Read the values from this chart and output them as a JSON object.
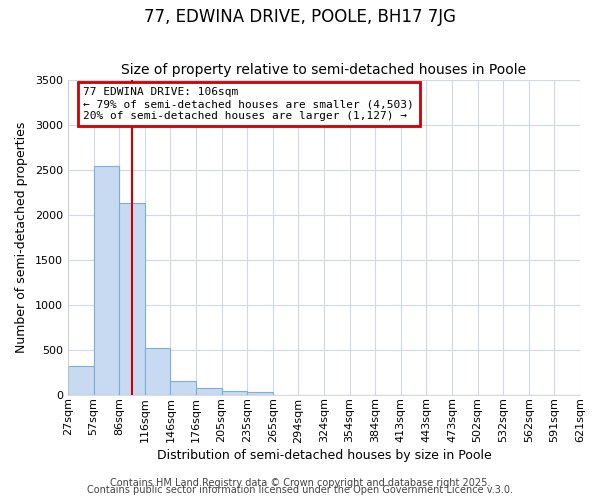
{
  "title": "77, EDWINA DRIVE, POOLE, BH17 7JG",
  "subtitle": "Size of property relative to semi-detached houses in Poole",
  "xlabel": "Distribution of semi-detached houses by size in Poole",
  "ylabel": "Number of semi-detached properties",
  "bar_values": [
    320,
    2540,
    2130,
    520,
    150,
    70,
    40,
    25,
    0,
    0,
    0,
    0,
    0,
    0,
    0,
    0,
    0,
    0,
    0,
    0
  ],
  "bin_labels": [
    "27sqm",
    "57sqm",
    "86sqm",
    "116sqm",
    "146sqm",
    "176sqm",
    "205sqm",
    "235sqm",
    "265sqm",
    "294sqm",
    "324sqm",
    "354sqm",
    "384sqm",
    "413sqm",
    "443sqm",
    "473sqm",
    "502sqm",
    "532sqm",
    "562sqm",
    "591sqm",
    "621sqm"
  ],
  "bar_color": "#c8daf2",
  "bar_edge_color": "#7bafd4",
  "background_color": "#ffffff",
  "grid_color": "#d0d8e8",
  "annotation_text": "77 EDWINA DRIVE: 106sqm\n← 79% of semi-detached houses are smaller (4,503)\n20% of semi-detached houses are larger (1,127) →",
  "annotation_box_color": "#cc0000",
  "vline_position": 2.5,
  "vline_color": "#cc0000",
  "ylim": [
    0,
    3500
  ],
  "yticks": [
    0,
    500,
    1000,
    1500,
    2000,
    2500,
    3000,
    3500
  ],
  "footer_line1": "Contains HM Land Registry data © Crown copyright and database right 2025.",
  "footer_line2": "Contains public sector information licensed under the Open Government Licence v.3.0.",
  "title_fontsize": 12,
  "subtitle_fontsize": 10,
  "axis_fontsize": 9,
  "tick_fontsize": 8,
  "annotation_fontsize": 8,
  "footer_fontsize": 7
}
